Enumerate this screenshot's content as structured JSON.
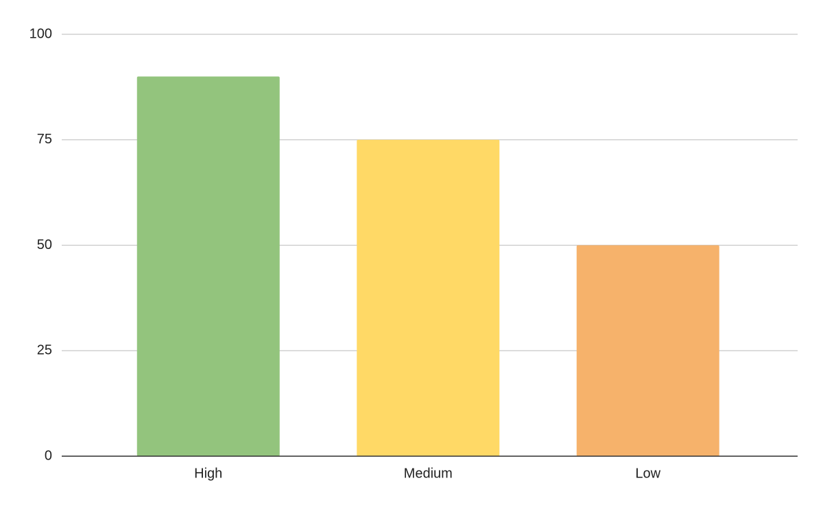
{
  "chart_data": {
    "type": "bar",
    "categories": [
      "High",
      "Medium",
      "Low"
    ],
    "values": [
      90,
      75,
      50
    ],
    "colors": [
      "#93c47d",
      "#ffd966",
      "#f6b26b"
    ],
    "ylim": [
      0,
      100
    ],
    "yticks": [
      0,
      25,
      50,
      75,
      100
    ],
    "grid": true
  }
}
